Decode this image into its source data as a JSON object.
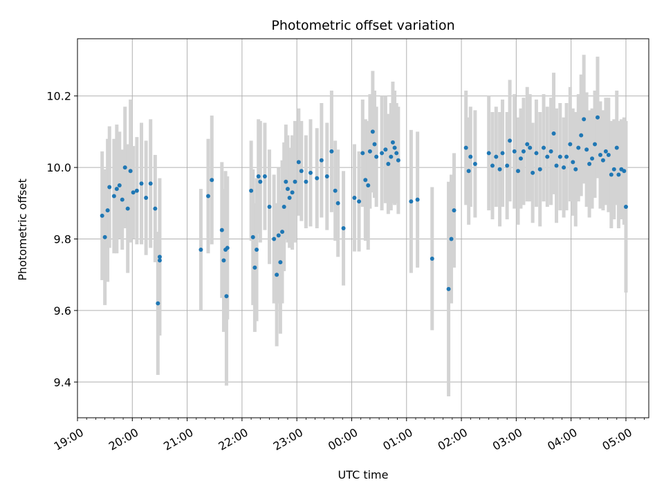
{
  "chart_data": {
    "type": "scatter",
    "title": "Photometric offset variation",
    "xlabel": "UTC time",
    "ylabel": "Photometric offset",
    "xlim": [
      "19:00",
      "05:25"
    ],
    "ylim": [
      9.3,
      10.36
    ],
    "grid": true,
    "x_ticks": [
      "19:00",
      "20:00",
      "21:00",
      "22:00",
      "23:00",
      "00:00",
      "01:00",
      "02:00",
      "03:00",
      "04:00",
      "05:00"
    ],
    "y_ticks": [
      "9.4",
      "9.6",
      "9.8",
      "10.0",
      "10.2"
    ],
    "point_color": "#1f77b4",
    "errorbar_color": "#d3d3d3",
    "series": [
      {
        "points": [
          {
            "t": "19:27",
            "y": 9.865,
            "err": 0.18
          },
          {
            "t": "19:30",
            "y": 9.805,
            "err": 0.19
          },
          {
            "t": "19:33",
            "y": 9.88,
            "err": 0.2
          },
          {
            "t": "19:35",
            "y": 9.945,
            "err": 0.17
          },
          {
            "t": "19:40",
            "y": 9.92,
            "err": 0.16
          },
          {
            "t": "19:43",
            "y": 9.94,
            "err": 0.18
          },
          {
            "t": "19:46",
            "y": 9.95,
            "err": 0.15
          },
          {
            "t": "19:49",
            "y": 9.91,
            "err": 0.14
          },
          {
            "t": "19:52",
            "y": 10.0,
            "err": 0.17
          },
          {
            "t": "19:55",
            "y": 9.885,
            "err": 0.18
          },
          {
            "t": "19:58",
            "y": 9.99,
            "err": 0.2
          },
          {
            "t": "20:01",
            "y": 9.93,
            "err": 0.13
          },
          {
            "t": "20:05",
            "y": 9.935,
            "err": 0.15
          },
          {
            "t": "20:10",
            "y": 9.955,
            "err": 0.17
          },
          {
            "t": "20:15",
            "y": 9.915,
            "err": 0.16
          },
          {
            "t": "20:20",
            "y": 9.955,
            "err": 0.18
          },
          {
            "t": "20:25",
            "y": 9.885,
            "err": 0.15
          },
          {
            "t": "20:28",
            "y": 9.62,
            "err": 0.2
          },
          {
            "t": "20:30",
            "y": 9.75,
            "err": 0.22
          },
          {
            "t": "20:30",
            "y": 9.74,
            "err": 0.2
          },
          {
            "t": "21:15",
            "y": 9.77,
            "err": 0.17
          },
          {
            "t": "21:23",
            "y": 9.92,
            "err": 0.16
          },
          {
            "t": "21:27",
            "y": 9.965,
            "err": 0.18
          },
          {
            "t": "21:38",
            "y": 9.825,
            "err": 0.19
          },
          {
            "t": "21:40",
            "y": 9.74,
            "err": 0.2
          },
          {
            "t": "21:42",
            "y": 9.77,
            "err": 0.22
          },
          {
            "t": "21:43",
            "y": 9.64,
            "err": 0.25
          },
          {
            "t": "21:44",
            "y": 9.775,
            "err": 0.2
          },
          {
            "t": "22:10",
            "y": 9.935,
            "err": 0.14
          },
          {
            "t": "22:12",
            "y": 9.805,
            "err": 0.19
          },
          {
            "t": "22:14",
            "y": 9.72,
            "err": 0.18
          },
          {
            "t": "22:16",
            "y": 9.77,
            "err": 0.2
          },
          {
            "t": "22:18",
            "y": 9.975,
            "err": 0.16
          },
          {
            "t": "22:20",
            "y": 9.96,
            "err": 0.17
          },
          {
            "t": "22:25",
            "y": 9.975,
            "err": 0.15
          },
          {
            "t": "22:30",
            "y": 9.89,
            "err": 0.16
          },
          {
            "t": "22:35",
            "y": 9.8,
            "err": 0.18
          },
          {
            "t": "22:38",
            "y": 9.7,
            "err": 0.2
          },
          {
            "t": "22:40",
            "y": 9.81,
            "err": 0.19
          },
          {
            "t": "22:42",
            "y": 9.735,
            "err": 0.2
          },
          {
            "t": "22:44",
            "y": 9.82,
            "err": 0.2
          },
          {
            "t": "22:46",
            "y": 9.89,
            "err": 0.18
          },
          {
            "t": "22:48",
            "y": 9.96,
            "err": 0.16
          },
          {
            "t": "22:50",
            "y": 9.94,
            "err": 0.15
          },
          {
            "t": "22:52",
            "y": 9.915,
            "err": 0.14
          },
          {
            "t": "22:55",
            "y": 9.93,
            "err": 0.16
          },
          {
            "t": "22:58",
            "y": 9.96,
            "err": 0.17
          },
          {
            "t": "23:02",
            "y": 10.015,
            "err": 0.15
          },
          {
            "t": "23:05",
            "y": 9.99,
            "err": 0.14
          },
          {
            "t": "23:10",
            "y": 9.96,
            "err": 0.13
          },
          {
            "t": "23:15",
            "y": 9.985,
            "err": 0.15
          },
          {
            "t": "23:22",
            "y": 9.97,
            "err": 0.14
          },
          {
            "t": "23:27",
            "y": 10.02,
            "err": 0.16
          },
          {
            "t": "23:33",
            "y": 9.975,
            "err": 0.15
          },
          {
            "t": "23:38",
            "y": 10.045,
            "err": 0.17
          },
          {
            "t": "23:42",
            "y": 9.935,
            "err": 0.14
          },
          {
            "t": "23:45",
            "y": 9.9,
            "err": 0.15
          },
          {
            "t": "23:51",
            "y": 9.83,
            "err": 0.16
          },
          {
            "t": "00:03",
            "y": 9.915,
            "err": 0.15
          },
          {
            "t": "00:08",
            "y": 9.905,
            "err": 0.14
          },
          {
            "t": "00:12",
            "y": 10.04,
            "err": 0.15
          },
          {
            "t": "00:15",
            "y": 9.965,
            "err": 0.17
          },
          {
            "t": "00:18",
            "y": 9.95,
            "err": 0.18
          },
          {
            "t": "00:20",
            "y": 10.045,
            "err": 0.16
          },
          {
            "t": "00:23",
            "y": 10.1,
            "err": 0.17
          },
          {
            "t": "00:25",
            "y": 10.065,
            "err": 0.15
          },
          {
            "t": "00:27",
            "y": 10.03,
            "err": 0.14
          },
          {
            "t": "00:33",
            "y": 10.04,
            "err": 0.16
          },
          {
            "t": "00:37",
            "y": 10.05,
            "err": 0.15
          },
          {
            "t": "00:40",
            "y": 10.01,
            "err": 0.14
          },
          {
            "t": "00:43",
            "y": 10.03,
            "err": 0.15
          },
          {
            "t": "00:45",
            "y": 10.07,
            "err": 0.17
          },
          {
            "t": "00:47",
            "y": 10.055,
            "err": 0.16
          },
          {
            "t": "00:49",
            "y": 10.04,
            "err": 0.14
          },
          {
            "t": "00:51",
            "y": 10.02,
            "err": 0.15
          },
          {
            "t": "01:05",
            "y": 9.905,
            "err": 0.2
          },
          {
            "t": "01:12",
            "y": 9.91,
            "err": 0.19
          },
          {
            "t": "01:28",
            "y": 9.745,
            "err": 0.2
          },
          {
            "t": "01:46",
            "y": 9.66,
            "err": 0.3
          },
          {
            "t": "01:49",
            "y": 9.8,
            "err": 0.18
          },
          {
            "t": "01:52",
            "y": 9.88,
            "err": 0.16
          },
          {
            "t": "02:05",
            "y": 10.055,
            "err": 0.16
          },
          {
            "t": "02:08",
            "y": 9.99,
            "err": 0.15
          },
          {
            "t": "02:10",
            "y": 10.03,
            "err": 0.14
          },
          {
            "t": "02:15",
            "y": 10.01,
            "err": 0.15
          },
          {
            "t": "02:30",
            "y": 10.04,
            "err": 0.16
          },
          {
            "t": "02:34",
            "y": 10.005,
            "err": 0.15
          },
          {
            "t": "02:38",
            "y": 10.03,
            "err": 0.14
          },
          {
            "t": "02:42",
            "y": 9.995,
            "err": 0.16
          },
          {
            "t": "02:45",
            "y": 10.04,
            "err": 0.15
          },
          {
            "t": "02:50",
            "y": 10.005,
            "err": 0.15
          },
          {
            "t": "02:53",
            "y": 10.075,
            "err": 0.17
          },
          {
            "t": "02:58",
            "y": 10.045,
            "err": 0.16
          },
          {
            "t": "03:02",
            "y": 9.99,
            "err": 0.15
          },
          {
            "t": "03:05",
            "y": 10.025,
            "err": 0.14
          },
          {
            "t": "03:08",
            "y": 10.045,
            "err": 0.15
          },
          {
            "t": "03:12",
            "y": 10.065,
            "err": 0.16
          },
          {
            "t": "03:15",
            "y": 10.055,
            "err": 0.15
          },
          {
            "t": "03:18",
            "y": 9.985,
            "err": 0.14
          },
          {
            "t": "03:22",
            "y": 10.04,
            "err": 0.15
          },
          {
            "t": "03:26",
            "y": 9.995,
            "err": 0.16
          },
          {
            "t": "03:30",
            "y": 10.055,
            "err": 0.15
          },
          {
            "t": "03:34",
            "y": 10.03,
            "err": 0.14
          },
          {
            "t": "03:38",
            "y": 10.045,
            "err": 0.15
          },
          {
            "t": "03:41",
            "y": 10.095,
            "err": 0.17
          },
          {
            "t": "03:44",
            "y": 10.005,
            "err": 0.16
          },
          {
            "t": "03:48",
            "y": 10.03,
            "err": 0.15
          },
          {
            "t": "03:52",
            "y": 10.0,
            "err": 0.14
          },
          {
            "t": "03:55",
            "y": 10.03,
            "err": 0.15
          },
          {
            "t": "03:59",
            "y": 10.065,
            "err": 0.16
          },
          {
            "t": "04:02",
            "y": 10.015,
            "err": 0.15
          },
          {
            "t": "04:05",
            "y": 9.995,
            "err": 0.16
          },
          {
            "t": "04:08",
            "y": 10.055,
            "err": 0.15
          },
          {
            "t": "04:11",
            "y": 10.09,
            "err": 0.17
          },
          {
            "t": "04:14",
            "y": 10.135,
            "err": 0.18
          },
          {
            "t": "04:17",
            "y": 10.05,
            "err": 0.16
          },
          {
            "t": "04:20",
            "y": 10.01,
            "err": 0.15
          },
          {
            "t": "04:23",
            "y": 10.025,
            "err": 0.14
          },
          {
            "t": "04:26",
            "y": 10.065,
            "err": 0.15
          },
          {
            "t": "04:29",
            "y": 10.14,
            "err": 0.17
          },
          {
            "t": "04:32",
            "y": 10.035,
            "err": 0.15
          },
          {
            "t": "04:35",
            "y": 10.02,
            "err": 0.14
          },
          {
            "t": "04:38",
            "y": 10.045,
            "err": 0.15
          },
          {
            "t": "04:41",
            "y": 10.035,
            "err": 0.16
          },
          {
            "t": "04:44",
            "y": 9.98,
            "err": 0.15
          },
          {
            "t": "04:47",
            "y": 9.995,
            "err": 0.14
          },
          {
            "t": "04:50",
            "y": 10.055,
            "err": 0.16
          },
          {
            "t": "04:52",
            "y": 9.98,
            "err": 0.15
          },
          {
            "t": "04:55",
            "y": 9.995,
            "err": 0.14
          },
          {
            "t": "04:58",
            "y": 9.99,
            "err": 0.15
          },
          {
            "t": "05:00",
            "y": 9.89,
            "err": 0.24
          }
        ]
      }
    ]
  }
}
